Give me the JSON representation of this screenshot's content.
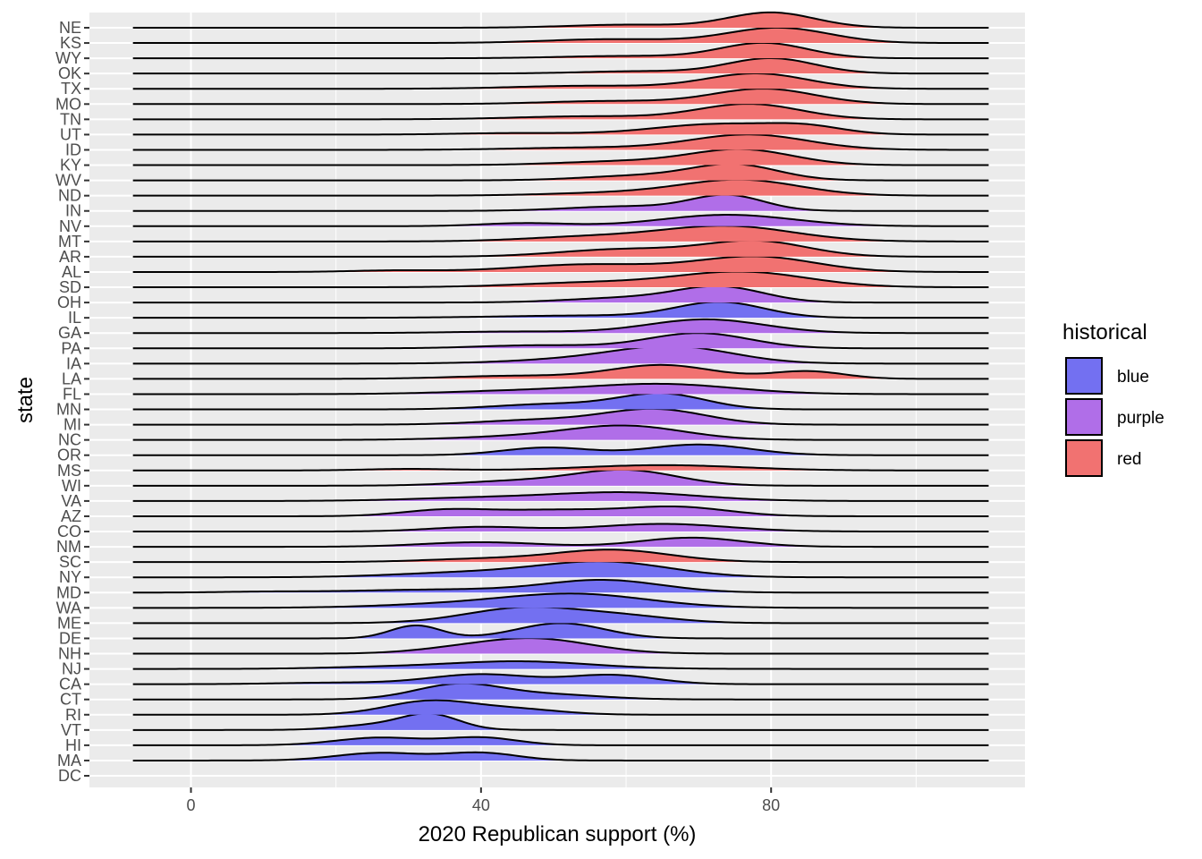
{
  "chart_data": {
    "type": "ridgeline",
    "xlabel": "2020 Republican support (%)",
    "ylabel": "state",
    "x_ticks": [
      0,
      40,
      80
    ],
    "x_range": [
      -14,
      115
    ],
    "density_range": [
      -8,
      110
    ],
    "grid": "on",
    "legend": {
      "title": "historical",
      "placement": "right",
      "entries": [
        {
          "key": "blue",
          "label": "blue",
          "color": "#7370F1"
        },
        {
          "key": "purple",
          "label": "purple",
          "color": "#B06EE8"
        },
        {
          "key": "red",
          "label": "red",
          "color": "#F17271"
        }
      ]
    },
    "states": [
      {
        "state": "NE",
        "group": "red",
        "peaks": [
          [
            80,
            6,
            1.0
          ],
          [
            60,
            8,
            0.2
          ]
        ]
      },
      {
        "state": "KS",
        "group": "red",
        "peaks": [
          [
            81,
            7,
            1.0
          ],
          [
            58,
            9,
            0.25
          ]
        ]
      },
      {
        "state": "WY",
        "group": "red",
        "peaks": [
          [
            79,
            6,
            1.0
          ],
          [
            60,
            9,
            0.15
          ]
        ]
      },
      {
        "state": "OK",
        "group": "red",
        "peaks": [
          [
            80,
            6,
            1.0
          ],
          [
            62,
            8,
            0.15
          ]
        ]
      },
      {
        "state": "TX",
        "group": "red",
        "peaks": [
          [
            78,
            7,
            1.0
          ],
          [
            55,
            10,
            0.2
          ]
        ]
      },
      {
        "state": "MO",
        "group": "red",
        "peaks": [
          [
            79,
            7,
            1.0
          ],
          [
            58,
            9,
            0.2
          ]
        ]
      },
      {
        "state": "TN",
        "group": "red",
        "peaks": [
          [
            77,
            7,
            1.0
          ],
          [
            55,
            10,
            0.2
          ]
        ]
      },
      {
        "state": "UT",
        "group": "red",
        "peaks": [
          [
            73,
            9,
            0.7
          ],
          [
            85,
            5,
            0.4
          ],
          [
            45,
            8,
            0.1
          ]
        ]
      },
      {
        "state": "ID",
        "group": "red",
        "peaks": [
          [
            77,
            8,
            1.0
          ],
          [
            55,
            10,
            0.15
          ]
        ]
      },
      {
        "state": "KY",
        "group": "red",
        "peaks": [
          [
            76,
            7,
            1.0
          ],
          [
            60,
            9,
            0.25
          ]
        ]
      },
      {
        "state": "WV",
        "group": "red",
        "peaks": [
          [
            75,
            6,
            1.0
          ],
          [
            62,
            8,
            0.3
          ]
        ]
      },
      {
        "state": "ND",
        "group": "red",
        "peaks": [
          [
            76,
            8,
            1.0
          ],
          [
            60,
            10,
            0.2
          ]
        ]
      },
      {
        "state": "IN",
        "group": "purple",
        "peaks": [
          [
            74,
            5,
            1.0
          ],
          [
            60,
            8,
            0.3
          ]
        ]
      },
      {
        "state": "NV",
        "group": "purple",
        "peaks": [
          [
            74,
            9,
            0.75
          ],
          [
            46,
            6,
            0.2
          ]
        ]
      },
      {
        "state": "MT",
        "group": "red",
        "peaks": [
          [
            74,
            9,
            1.0
          ],
          [
            55,
            9,
            0.3
          ]
        ]
      },
      {
        "state": "AR",
        "group": "red",
        "peaks": [
          [
            78,
            7,
            1.0
          ],
          [
            60,
            9,
            0.5
          ]
        ]
      },
      {
        "state": "AL",
        "group": "red",
        "peaks": [
          [
            78,
            8,
            1.0
          ],
          [
            55,
            10,
            0.5
          ],
          [
            28,
            6,
            0.1
          ]
        ]
      },
      {
        "state": "SD",
        "group": "red",
        "peaks": [
          [
            76,
            9,
            1.0
          ],
          [
            55,
            10,
            0.3
          ]
        ]
      },
      {
        "state": "OH",
        "group": "purple",
        "peaks": [
          [
            73,
            6,
            1.0
          ],
          [
            60,
            8,
            0.3
          ]
        ]
      },
      {
        "state": "IL",
        "group": "blue",
        "peaks": [
          [
            73,
            6,
            1.0
          ],
          [
            55,
            12,
            0.15
          ]
        ]
      },
      {
        "state": "GA",
        "group": "purple",
        "peaks": [
          [
            71,
            8,
            0.9
          ],
          [
            45,
            9,
            0.1
          ]
        ]
      },
      {
        "state": "PA",
        "group": "purple",
        "peaks": [
          [
            70,
            7,
            1.0
          ],
          [
            48,
            8,
            0.2
          ]
        ]
      },
      {
        "state": "IA",
        "group": "purple",
        "peaks": [
          [
            67,
            8,
            1.0
          ],
          [
            55,
            10,
            0.3
          ]
        ]
      },
      {
        "state": "LA",
        "group": "red",
        "peaks": [
          [
            65,
            7,
            0.9
          ],
          [
            85,
            5,
            0.5
          ],
          [
            45,
            9,
            0.2
          ]
        ]
      },
      {
        "state": "FL",
        "group": "purple",
        "peaks": [
          [
            65,
            10,
            0.65
          ],
          [
            45,
            10,
            0.2
          ]
        ]
      },
      {
        "state": "MN",
        "group": "blue",
        "peaks": [
          [
            65,
            6,
            1.0
          ],
          [
            50,
            8,
            0.35
          ]
        ]
      },
      {
        "state": "MI",
        "group": "purple",
        "peaks": [
          [
            64,
            7,
            1.0
          ],
          [
            48,
            8,
            0.3
          ]
        ]
      },
      {
        "state": "NC",
        "group": "purple",
        "peaks": [
          [
            60,
            8,
            0.9
          ],
          [
            45,
            9,
            0.2
          ]
        ]
      },
      {
        "state": "OR",
        "group": "blue",
        "peaks": [
          [
            70,
            7,
            0.7
          ],
          [
            49,
            6,
            0.5
          ]
        ]
      },
      {
        "state": "MS",
        "group": "red",
        "peaks": [
          [
            65,
            11,
            0.35
          ],
          [
            30,
            6,
            0.1
          ]
        ]
      },
      {
        "state": "WI",
        "group": "purple",
        "peaks": [
          [
            60,
            7,
            1.0
          ],
          [
            45,
            8,
            0.3
          ]
        ]
      },
      {
        "state": "VA",
        "group": "purple",
        "peaks": [
          [
            60,
            10,
            0.55
          ],
          [
            40,
            10,
            0.2
          ]
        ]
      },
      {
        "state": "AZ",
        "group": "purple",
        "peaks": [
          [
            67,
            7,
            0.6
          ],
          [
            35,
            6,
            0.4
          ],
          [
            50,
            8,
            0.4
          ]
        ]
      },
      {
        "state": "CO",
        "group": "purple",
        "peaks": [
          [
            65,
            9,
            0.5
          ],
          [
            40,
            7,
            0.3
          ]
        ]
      },
      {
        "state": "NM",
        "group": "purple",
        "peaks": [
          [
            69,
            7,
            0.6
          ],
          [
            40,
            8,
            0.3
          ]
        ]
      },
      {
        "state": "SC",
        "group": "red",
        "peaks": [
          [
            58,
            8,
            0.8
          ],
          [
            40,
            8,
            0.2
          ]
        ]
      },
      {
        "state": "NY",
        "group": "blue",
        "peaks": [
          [
            57,
            9,
            1.0
          ],
          [
            38,
            10,
            0.3
          ]
        ]
      },
      {
        "state": "MD",
        "group": "blue",
        "peaks": [
          [
            57,
            8,
            0.8
          ],
          [
            35,
            12,
            0.2
          ],
          [
            10,
            6,
            0.05
          ]
        ]
      },
      {
        "state": "WA",
        "group": "blue",
        "peaks": [
          [
            53,
            10,
            0.9
          ],
          [
            35,
            10,
            0.2
          ]
        ]
      },
      {
        "state": "ME",
        "group": "blue",
        "peaks": [
          [
            46,
            8,
            1.0
          ],
          [
            60,
            7,
            0.4
          ]
        ]
      },
      {
        "state": "DE",
        "group": "blue",
        "peaks": [
          [
            31,
            3.5,
            0.85
          ],
          [
            51,
            6,
            1.0
          ]
        ]
      },
      {
        "state": "NH",
        "group": "purple",
        "peaks": [
          [
            47,
            8,
            1.0
          ],
          [
            35,
            6,
            0.15
          ]
        ]
      },
      {
        "state": "NJ",
        "group": "blue",
        "peaks": [
          [
            45,
            10,
            0.5
          ],
          [
            25,
            8,
            0.1
          ]
        ]
      },
      {
        "state": "CA",
        "group": "blue",
        "peaks": [
          [
            40,
            7,
            0.65
          ],
          [
            58,
            6,
            0.6
          ],
          [
            20,
            8,
            0.1
          ]
        ]
      },
      {
        "state": "CT",
        "group": "blue",
        "peaks": [
          [
            37,
            6,
            1.0
          ],
          [
            50,
            7,
            0.3
          ]
        ]
      },
      {
        "state": "RI",
        "group": "blue",
        "peaks": [
          [
            33,
            6,
            0.9
          ],
          [
            45,
            6,
            0.35
          ]
        ]
      },
      {
        "state": "VT",
        "group": "blue",
        "peaks": [
          [
            33,
            4,
            1.0
          ],
          [
            25,
            5,
            0.3
          ]
        ]
      },
      {
        "state": "HI",
        "group": "blue",
        "peaks": [
          [
            26,
            6,
            0.5
          ],
          [
            40,
            5,
            0.5
          ]
        ]
      },
      {
        "state": "MA",
        "group": "blue",
        "peaks": [
          [
            26,
            6,
            0.5
          ],
          [
            40,
            5,
            0.5
          ]
        ]
      },
      {
        "state": "DC",
        "group": "blue",
        "peaks": []
      }
    ]
  }
}
